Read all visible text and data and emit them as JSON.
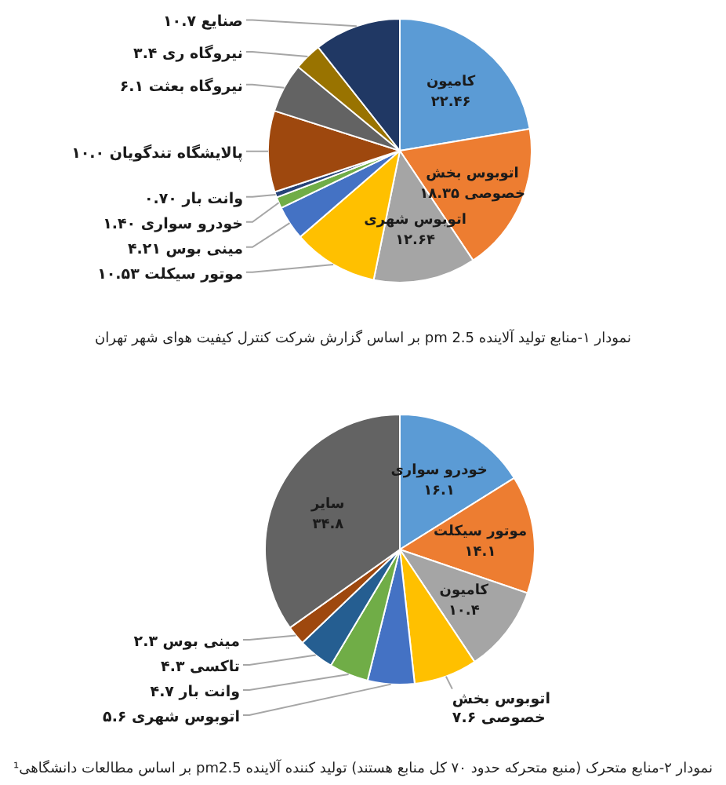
{
  "chart_data": [
    {
      "type": "pie",
      "title": "نمودار ۱-منابع تولید آلاینده pm 2.5 بر اساس گزارش شرکت کنترل کیفیت هوای شهر تهران",
      "categories": [
        "کامیون",
        "اتوبوس بخش خصوصی",
        "اتوبوس شهری",
        "موتور سیکلت",
        "مینی بوس",
        "خودرو سواری",
        "وانت بار",
        "پالایشگاه تندگویان",
        "نیروگاه بعثت",
        "نیروگاه ری",
        "صنایع"
      ],
      "values": [
        22.46,
        18.35,
        12.64,
        10.53,
        4.21,
        1.4,
        0.7,
        10.0,
        6.1,
        3.4,
        10.7
      ],
      "value_labels": [
        "۲۲.۴۶",
        "۱۸.۳۵",
        "۱۲.۶۴",
        "۱۰.۵۳",
        "۴.۲۱",
        "۱.۴۰",
        "۰.۷۰",
        "۱۰.۰",
        "۶.۱",
        "۳.۴",
        "۱۰.۷"
      ],
      "colors": [
        "#5b9bd5",
        "#ed7d31",
        "#a5a5a5",
        "#ffc000",
        "#4472c4",
        "#70ad47",
        "#264478",
        "#9e480e",
        "#636363",
        "#997300",
        "#203864"
      ]
    },
    {
      "type": "pie",
      "title": "نمودار ۲-منابع متحرک (منبع متحرکه حدود ۷۰ کل منابع هستند) تولید کننده آلاینده pm2.5 بر اساس مطالعات دانشگاهی¹",
      "categories": [
        "خودرو سواری",
        "موتور سیکلت",
        "کامیون",
        "اتوبوس بخش خصوصی",
        "اتوبوس شهری",
        "وانت بار",
        "تاکسی",
        "مینی بوس",
        "سایر"
      ],
      "values": [
        16.1,
        14.1,
        10.4,
        7.6,
        5.6,
        4.7,
        4.3,
        2.3,
        34.8
      ],
      "value_labels": [
        "۱۶.۱",
        "۱۴.۱",
        "۱۰.۴",
        "۷.۶",
        "۵.۶",
        "۴.۷",
        "۴.۳",
        "۲.۳",
        "۳۴.۸"
      ],
      "colors": [
        "#5b9bd5",
        "#ed7d31",
        "#a5a5a5",
        "#ffc000",
        "#4472c4",
        "#70ad47",
        "#255e91",
        "#9e480e",
        "#636363"
      ]
    }
  ]
}
